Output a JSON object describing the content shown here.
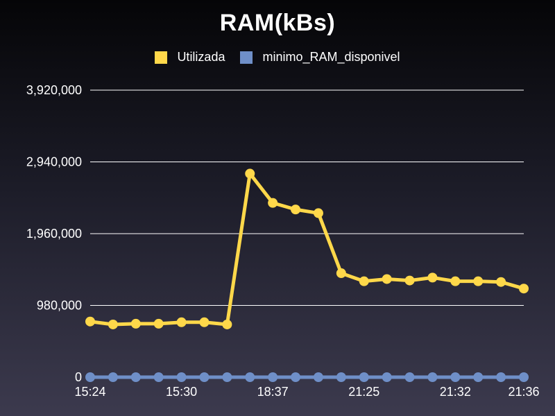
{
  "chart_data": {
    "type": "line",
    "title": "RAM(kBs)",
    "xlabel": "",
    "ylabel": "",
    "ylim": [
      0,
      3920000
    ],
    "yticks": [
      0,
      980000,
      1960000,
      2940000,
      3920000
    ],
    "ytick_labels": [
      "0",
      "980,000",
      "1,960,000",
      "2,940,000",
      "3,920,000"
    ],
    "xtick_labels": [
      {
        "index": 0,
        "label": "15:24"
      },
      {
        "index": 4,
        "label": "15:30"
      },
      {
        "index": 8,
        "label": "18:37"
      },
      {
        "index": 12,
        "label": "21:25"
      },
      {
        "index": 16,
        "label": "21:32"
      },
      {
        "index": 19,
        "label": "21:36"
      }
    ],
    "point_count": 20,
    "grid": true,
    "legend_position": "top-center",
    "series": [
      {
        "name": "Utilizada",
        "color": "#ffd84a",
        "values": [
          760000,
          720000,
          730000,
          730000,
          750000,
          750000,
          720000,
          2780000,
          2380000,
          2290000,
          2240000,
          1420000,
          1310000,
          1340000,
          1320000,
          1360000,
          1310000,
          1310000,
          1300000,
          1210000
        ]
      },
      {
        "name": "minimo_RAM_disponivel",
        "color": "#6f8fc8",
        "values": [
          0,
          0,
          0,
          0,
          0,
          0,
          0,
          0,
          0,
          0,
          0,
          0,
          0,
          0,
          0,
          0,
          0,
          0,
          0,
          0
        ]
      }
    ]
  }
}
